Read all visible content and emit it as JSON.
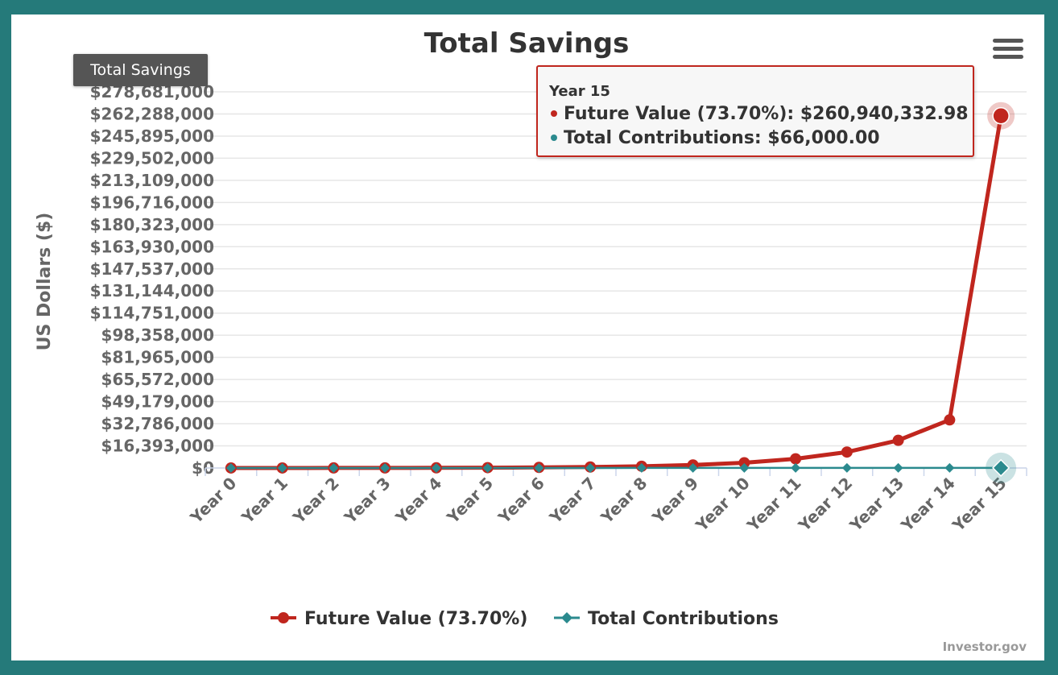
{
  "chart_data": {
    "type": "line",
    "title": "Total Savings",
    "ylabel": "US Dollars ($)",
    "xlabel": "",
    "categories": [
      "Year 0",
      "Year 1",
      "Year 2",
      "Year 3",
      "Year 4",
      "Year 5",
      "Year 6",
      "Year 7",
      "Year 8",
      "Year 9",
      "Year 10",
      "Year 11",
      "Year 12",
      "Year 13",
      "Year 14",
      "Year 15"
    ],
    "y_ticks": [
      "$0",
      "$16,393,000",
      "$32,786,000",
      "$49,179,000",
      "$65,572,000",
      "$81,965,000",
      "$98,358,000",
      "$114,751,000",
      "$131,144,000",
      "$147,537,000",
      "$163,930,000",
      "$180,323,000",
      "$196,716,000",
      "$213,109,000",
      "$229,502,000",
      "$245,895,000",
      "$262,288,000",
      "$278,681,000"
    ],
    "ylim": [
      0,
      278681000
    ],
    "grid": true,
    "legend_position": "bottom-center",
    "series": [
      {
        "name": "Future Value (73.70%)",
        "color": "#c0261e",
        "marker": "circle",
        "values": [
          10000,
          21400,
          41500,
          76300,
          136800,
          241900,
          424400,
          741400,
          1292000,
          2248000,
          3909000,
          6794000,
          11805000,
          20510000,
          35630000,
          260940332.98
        ]
      },
      {
        "name": "Total Contributions",
        "color": "#2b8a8e",
        "marker": "diamond",
        "values": [
          6000,
          10000,
          14000,
          18000,
          22000,
          26000,
          30000,
          34000,
          38000,
          42000,
          46000,
          50000,
          54000,
          58000,
          62000,
          66000
        ]
      }
    ]
  },
  "tooltip": {
    "title": "Year 15",
    "row1": "Future Value (73.70%): $260,940,332.98",
    "row2": "Total Contributions: $66,000.00",
    "hover_label": "Total Savings"
  },
  "credits": "Investor.gov",
  "menu_icon": "hamburger-menu-icon"
}
